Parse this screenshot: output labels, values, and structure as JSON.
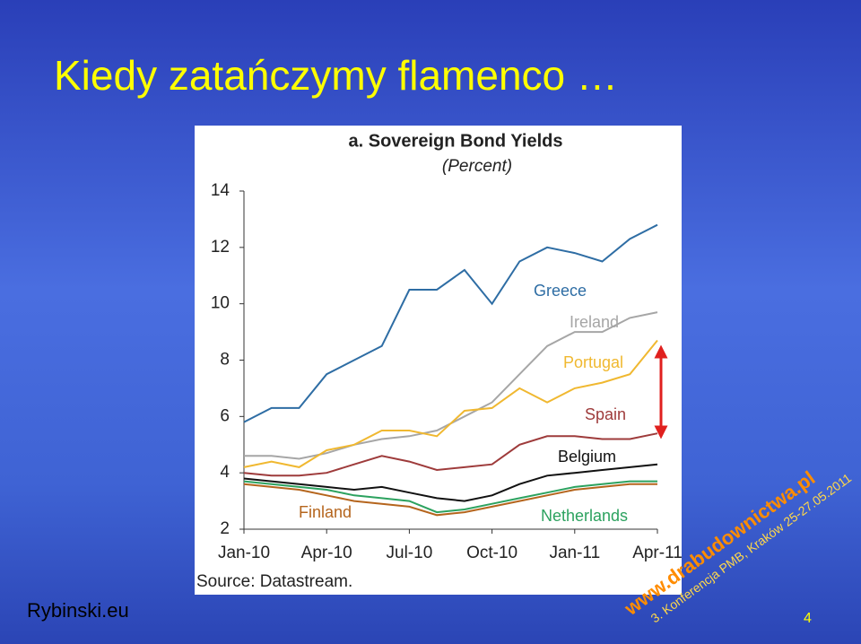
{
  "slide": {
    "title": "Kiedy zatańczymy flamenco …",
    "footer": "Rybinski.eu",
    "page_number": "4",
    "watermark": "www.drabudownictwa.pl",
    "conference": "3. Konferencja PMB, Kraków 25-27.05.2011"
  },
  "chart_data": {
    "type": "line",
    "title": "a. Sovereign Bond Yields",
    "subtitle": "(Percent)",
    "source": "Source: Datastream.",
    "categories": [
      "Jan-10",
      null,
      null,
      "Apr-10",
      null,
      null,
      "Jul-10",
      null,
      null,
      "Oct-10",
      null,
      null,
      "Jan-11",
      null,
      null,
      "Apr-11"
    ],
    "ylim": [
      2,
      14
    ],
    "yticks": [
      2,
      4,
      6,
      8,
      10,
      12,
      14
    ],
    "grid": false,
    "series": [
      {
        "name": "Greece",
        "color": "#2e6da4",
        "values": [
          5.8,
          6.3,
          6.3,
          7.5,
          8.0,
          8.5,
          10.5,
          10.5,
          11.2,
          10.0,
          11.5,
          12.0,
          11.8,
          11.5,
          12.3,
          12.8
        ]
      },
      {
        "name": "Ireland",
        "color": "#a6a6a6",
        "values": [
          4.6,
          4.6,
          4.5,
          4.7,
          5.0,
          5.2,
          5.3,
          5.5,
          6.0,
          6.5,
          7.5,
          8.5,
          9.0,
          9.0,
          9.5,
          9.7
        ]
      },
      {
        "name": "Portugal",
        "color": "#f0b830",
        "values": [
          4.2,
          4.4,
          4.2,
          4.8,
          5.0,
          5.5,
          5.5,
          5.3,
          6.2,
          6.3,
          7.0,
          6.5,
          7.0,
          7.2,
          7.5,
          8.7
        ]
      },
      {
        "name": "Spain",
        "color": "#9e3b3b",
        "values": [
          4.0,
          3.9,
          3.9,
          4.0,
          4.3,
          4.6,
          4.4,
          4.1,
          4.2,
          4.3,
          5.0,
          5.3,
          5.3,
          5.2,
          5.2,
          5.4
        ]
      },
      {
        "name": "Belgium",
        "color": "#111111",
        "values": [
          3.8,
          3.7,
          3.6,
          3.5,
          3.4,
          3.5,
          3.3,
          3.1,
          3.0,
          3.2,
          3.6,
          3.9,
          4.0,
          4.1,
          4.2,
          4.3
        ]
      },
      {
        "name": "Finland",
        "color": "#b5651d",
        "values": [
          3.6,
          3.5,
          3.4,
          3.2,
          3.0,
          2.9,
          2.8,
          2.5,
          2.6,
          2.8,
          3.0,
          3.2,
          3.4,
          3.5,
          3.6,
          3.6
        ]
      },
      {
        "name": "Netherlands",
        "color": "#2ca25f",
        "values": [
          3.7,
          3.6,
          3.5,
          3.4,
          3.2,
          3.1,
          3.0,
          2.6,
          2.7,
          2.9,
          3.1,
          3.3,
          3.5,
          3.6,
          3.7,
          3.7
        ]
      }
    ]
  }
}
